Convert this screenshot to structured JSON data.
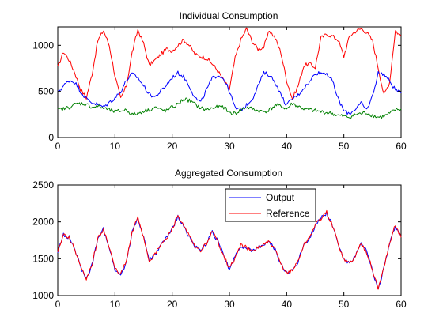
{
  "figure": {
    "background": "#ffffff"
  },
  "chart_data": [
    {
      "type": "line",
      "title": "Individual Consumption",
      "xlabel": "",
      "ylabel": "",
      "xlim": [
        0,
        60
      ],
      "ylim": [
        0,
        1200
      ],
      "xticks": [
        "0",
        "10",
        "20",
        "30",
        "40",
        "50",
        "60"
      ],
      "yticks": [
        "0",
        "500",
        "1000"
      ],
      "grid": false,
      "series": [
        {
          "color": "#ff0000",
          "x": [
            0,
            1,
            2,
            3,
            4,
            5,
            6,
            7,
            8,
            9,
            10,
            11,
            12,
            13,
            14,
            15,
            16,
            17,
            18,
            19,
            20,
            21,
            22,
            23,
            24,
            25,
            26,
            27,
            28,
            29,
            30,
            31,
            32,
            33,
            34,
            35,
            36,
            37,
            38,
            39,
            40,
            41,
            42,
            43,
            44,
            45,
            46,
            47,
            48,
            49,
            50,
            51,
            52,
            53,
            54,
            55,
            56,
            57,
            58,
            59,
            60
          ],
          "values": [
            760,
            930,
            840,
            700,
            520,
            430,
            690,
            1050,
            1160,
            1000,
            670,
            420,
            560,
            920,
            1170,
            1020,
            780,
            840,
            900,
            960,
            940,
            1000,
            1060,
            1000,
            900,
            880,
            860,
            800,
            720,
            620,
            520,
            860,
            1060,
            1180,
            1040,
            960,
            980,
            1160,
            1080,
            920,
            620,
            420,
            560,
            780,
            800,
            760,
            1080,
            1120,
            1100,
            1060,
            880,
            1100,
            1150,
            1180,
            1140,
            1050,
            760,
            460,
            600,
            1160,
            1100
          ]
        },
        {
          "color": "#0000ff",
          "x": [
            0,
            1,
            2,
            3,
            4,
            5,
            6,
            7,
            8,
            9,
            10,
            11,
            12,
            13,
            14,
            15,
            16,
            17,
            18,
            19,
            20,
            21,
            22,
            23,
            24,
            25,
            26,
            27,
            28,
            29,
            30,
            31,
            32,
            33,
            34,
            35,
            36,
            37,
            38,
            39,
            40,
            41,
            42,
            43,
            44,
            45,
            46,
            47,
            48,
            49,
            50,
            51,
            52,
            53,
            54,
            55,
            56,
            57,
            58,
            59,
            60
          ],
          "values": [
            490,
            560,
            620,
            600,
            500,
            420,
            380,
            360,
            330,
            380,
            430,
            500,
            620,
            690,
            650,
            560,
            470,
            440,
            500,
            570,
            650,
            700,
            660,
            560,
            430,
            380,
            520,
            640,
            680,
            640,
            500,
            320,
            300,
            350,
            420,
            560,
            700,
            680,
            600,
            460,
            350,
            420,
            460,
            540,
            600,
            700,
            700,
            700,
            610,
            420,
            290,
            260,
            310,
            370,
            300,
            450,
            700,
            690,
            610,
            520,
            480
          ]
        },
        {
          "color": "#008000",
          "x": [
            0,
            1,
            2,
            3,
            4,
            5,
            6,
            7,
            8,
            9,
            10,
            11,
            12,
            13,
            14,
            15,
            16,
            17,
            18,
            19,
            20,
            21,
            22,
            23,
            24,
            25,
            26,
            27,
            28,
            29,
            30,
            31,
            32,
            33,
            34,
            35,
            36,
            37,
            38,
            39,
            40,
            41,
            42,
            43,
            44,
            45,
            46,
            47,
            48,
            49,
            50,
            51,
            52,
            53,
            54,
            55,
            56,
            57,
            58,
            59,
            60
          ],
          "values": [
            300,
            310,
            330,
            360,
            370,
            360,
            330,
            340,
            320,
            300,
            280,
            290,
            300,
            250,
            260,
            290,
            300,
            330,
            300,
            290,
            330,
            360,
            420,
            400,
            360,
            320,
            300,
            320,
            330,
            330,
            270,
            260,
            300,
            330,
            310,
            290,
            280,
            300,
            350,
            340,
            310,
            370,
            340,
            310,
            300,
            290,
            280,
            270,
            260,
            240,
            230,
            220,
            250,
            260,
            270,
            240,
            220,
            230,
            260,
            300,
            310
          ]
        }
      ]
    },
    {
      "type": "line",
      "title": "Aggregated Consumption",
      "xlabel": "",
      "ylabel": "",
      "xlim": [
        0,
        60
      ],
      "ylim": [
        1000,
        2500
      ],
      "xticks": [
        "0",
        "10",
        "20",
        "30",
        "40",
        "50",
        "60"
      ],
      "yticks": [
        "1000",
        "1500",
        "2000",
        "2500"
      ],
      "grid": false,
      "legend": {
        "position": "top-center",
        "entries": [
          "Output",
          "Reference"
        ]
      },
      "series": [
        {
          "name": "Output",
          "color": "#0000ff",
          "x": [
            0,
            1,
            2,
            3,
            4,
            5,
            6,
            7,
            8,
            9,
            10,
            11,
            12,
            13,
            14,
            15,
            16,
            17,
            18,
            19,
            20,
            21,
            22,
            23,
            24,
            25,
            26,
            27,
            28,
            29,
            30,
            31,
            32,
            33,
            34,
            35,
            36,
            37,
            38,
            39,
            40,
            41,
            42,
            43,
            44,
            45,
            46,
            47,
            48,
            49,
            50,
            51,
            52,
            53,
            54,
            55,
            56,
            57,
            58,
            59,
            60
          ],
          "values": [
            1600,
            1820,
            1790,
            1620,
            1380,
            1220,
            1420,
            1760,
            1900,
            1660,
            1360,
            1280,
            1460,
            1860,
            2060,
            1780,
            1480,
            1550,
            1680,
            1780,
            1900,
            2080,
            1940,
            1800,
            1660,
            1600,
            1720,
            1860,
            1740,
            1540,
            1360,
            1520,
            1680,
            1640,
            1600,
            1650,
            1700,
            1720,
            1620,
            1420,
            1300,
            1350,
            1460,
            1700,
            1780,
            1950,
            2060,
            2120,
            1960,
            1700,
            1500,
            1430,
            1540,
            1700,
            1600,
            1340,
            1080,
            1380,
            1700,
            1950,
            1800
          ]
        },
        {
          "name": "Reference",
          "color": "#ff0000",
          "x": [
            0,
            1,
            2,
            3,
            4,
            5,
            6,
            7,
            8,
            9,
            10,
            11,
            12,
            13,
            14,
            15,
            16,
            17,
            18,
            19,
            20,
            21,
            22,
            23,
            24,
            25,
            26,
            27,
            28,
            29,
            30,
            31,
            32,
            33,
            34,
            35,
            36,
            37,
            38,
            39,
            40,
            41,
            42,
            43,
            44,
            45,
            46,
            47,
            48,
            49,
            50,
            51,
            52,
            53,
            54,
            55,
            56,
            57,
            58,
            59,
            60
          ],
          "values": [
            1610,
            1840,
            1780,
            1630,
            1390,
            1210,
            1430,
            1770,
            1910,
            1650,
            1370,
            1290,
            1470,
            1850,
            2070,
            1790,
            1470,
            1560,
            1690,
            1770,
            1910,
            2090,
            1930,
            1810,
            1650,
            1610,
            1710,
            1870,
            1730,
            1550,
            1370,
            1510,
            1690,
            1650,
            1590,
            1660,
            1690,
            1730,
            1610,
            1430,
            1310,
            1340,
            1470,
            1690,
            1790,
            1960,
            2050,
            2130,
            1950,
            1710,
            1490,
            1440,
            1530,
            1710,
            1590,
            1350,
            1090,
            1390,
            1710,
            1960,
            1790
          ]
        }
      ]
    }
  ]
}
